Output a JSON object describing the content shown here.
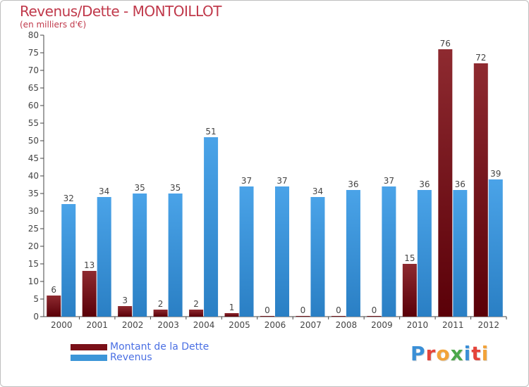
{
  "header": {
    "title": "Revenus/Dette - MONTOILLOT",
    "subtitle": "(en milliers d'€)"
  },
  "legend": {
    "items": [
      {
        "label": "Montant de la Dette",
        "color": "#7a1018"
      },
      {
        "label": "Revenus",
        "color": "#3c95d8"
      }
    ]
  },
  "logo": {
    "text": "Proxiti",
    "letter_colors": [
      "#3a8fd6",
      "#e5443a",
      "#f2a33a",
      "#4ca84a",
      "#3a8fd6",
      "#e5443a",
      "#f2a33a"
    ]
  },
  "chart_data": {
    "type": "bar",
    "title": "Revenus/Dette - MONTOILLOT",
    "subtitle": "(en milliers d'€)",
    "categories": [
      "2000",
      "2001",
      "2002",
      "2003",
      "2004",
      "2005",
      "2006",
      "2007",
      "2008",
      "2009",
      "2010",
      "2011",
      "2012"
    ],
    "series": [
      {
        "name": "Montant de la Dette",
        "color": "#7a1018",
        "values": [
          6,
          13,
          3,
          2,
          2,
          1,
          0,
          0,
          0,
          0,
          15,
          76,
          72
        ]
      },
      {
        "name": "Revenus",
        "color": "#3c95d8",
        "values": [
          32,
          34,
          35,
          35,
          51,
          37,
          37,
          34,
          36,
          37,
          36,
          36,
          39
        ]
      }
    ],
    "ylim": [
      0,
      80
    ],
    "yticks": [
      0,
      5,
      10,
      15,
      20,
      25,
      30,
      35,
      40,
      45,
      50,
      55,
      60,
      65,
      70,
      75,
      80
    ],
    "grid": false,
    "legend_position": "bottom-left"
  }
}
